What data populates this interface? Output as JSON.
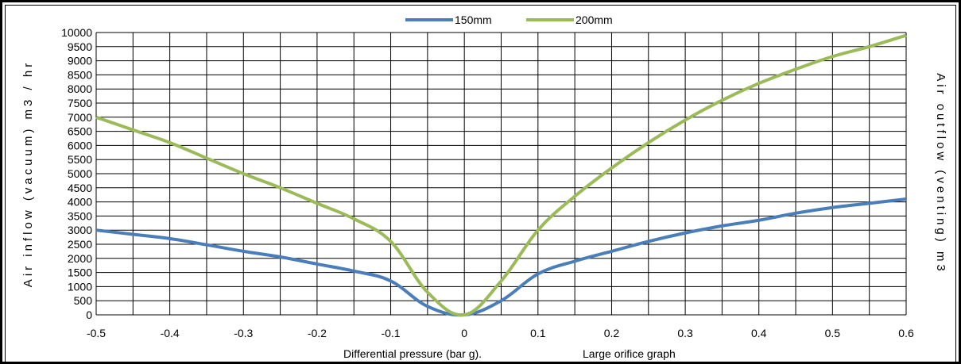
{
  "chart_data": {
    "type": "line",
    "xlabel": "Differential pressure  (bar g).",
    "caption": "Large orifice graph",
    "ylabel_left": "Air  inflow  (vacuum)   m3 / hr",
    "ylabel_right": "Air  outflow (venting)   m3",
    "xlim": [
      -0.5,
      0.6
    ],
    "ylim": [
      0,
      10000
    ],
    "grid": true,
    "legend_position": "top-center",
    "x_tick_labels": [
      "-0.5",
      "-0.4",
      "-0.3",
      "-0.2",
      "-0.1",
      "0",
      "0.1",
      "0.2",
      "0.3",
      "0.4",
      "0.5",
      "0.6"
    ],
    "y_tick_labels": [
      "0",
      "500",
      "1000",
      "1500",
      "2000",
      "2500",
      "3000",
      "3500",
      "4000",
      "4500",
      "5000",
      "5500",
      "6000",
      "6500",
      "7000",
      "7500",
      "8000",
      "8500",
      "9000",
      "9500",
      "10000"
    ],
    "x": [
      -0.5,
      -0.45,
      -0.4,
      -0.35,
      -0.3,
      -0.25,
      -0.2,
      -0.15,
      -0.1,
      -0.05,
      0,
      0.05,
      0.1,
      0.15,
      0.2,
      0.25,
      0.3,
      0.35,
      0.4,
      0.45,
      0.5,
      0.55,
      0.6
    ],
    "series": [
      {
        "name": "150mm",
        "color": "#4a7ebb",
        "values": [
          3000,
          2850,
          2700,
          2480,
          2250,
          2050,
          1800,
          1550,
          1200,
          300,
          0,
          500,
          1450,
          1900,
          2250,
          2600,
          2900,
          3150,
          3350,
          3600,
          3800,
          3950,
          4100
        ]
      },
      {
        "name": "200mm",
        "color": "#9bbb59",
        "values": [
          7000,
          6550,
          6100,
          5550,
          5000,
          4500,
          3950,
          3400,
          2600,
          800,
          0,
          1200,
          3000,
          4200,
          5200,
          6100,
          6900,
          7600,
          8200,
          8700,
          9150,
          9500,
          9900
        ]
      }
    ]
  }
}
